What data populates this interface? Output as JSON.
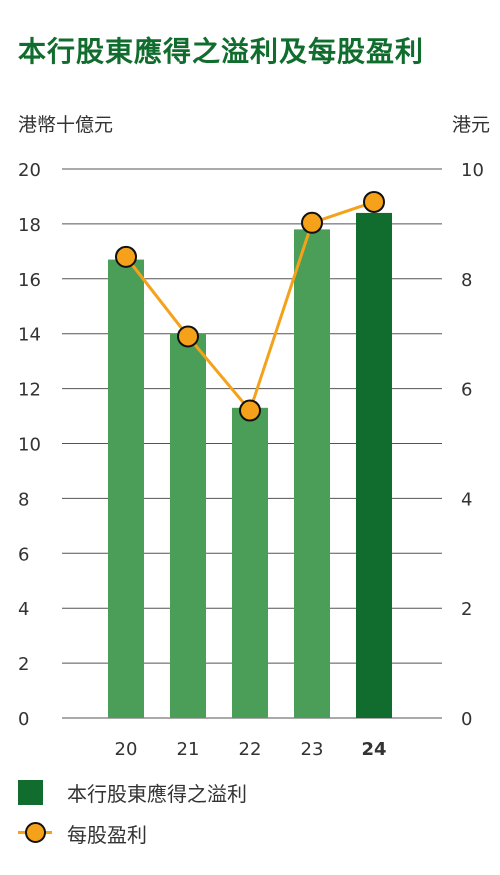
{
  "title": "本行股東應得之溢利及每股盈利",
  "chart_data": {
    "type": "bar",
    "categories": [
      "20",
      "21",
      "22",
      "23",
      "24"
    ],
    "bar_series": {
      "name": "本行股東應得之溢利",
      "values": [
        16.7,
        14.0,
        11.3,
        17.8,
        18.4
      ],
      "highlight_index": 4,
      "color": "#4b9e57",
      "highlight_color": "#116d2d"
    },
    "line_series": {
      "name": "每股盈利",
      "values": [
        8.4,
        6.95,
        5.6,
        9.02,
        9.4
      ],
      "color": "#f5a21a"
    },
    "y_left": {
      "label": "港幣十億元",
      "range": [
        0,
        20
      ],
      "ticks": [
        "0",
        "2",
        "4",
        "6",
        "8",
        "10",
        "12",
        "14",
        "16",
        "18",
        "20"
      ]
    },
    "y_right": {
      "label": "港元",
      "range": [
        0,
        10
      ],
      "ticks": [
        "0",
        "2",
        "4",
        "6",
        "8",
        "10"
      ]
    },
    "grid": true,
    "legend_position": "bottom-left"
  }
}
